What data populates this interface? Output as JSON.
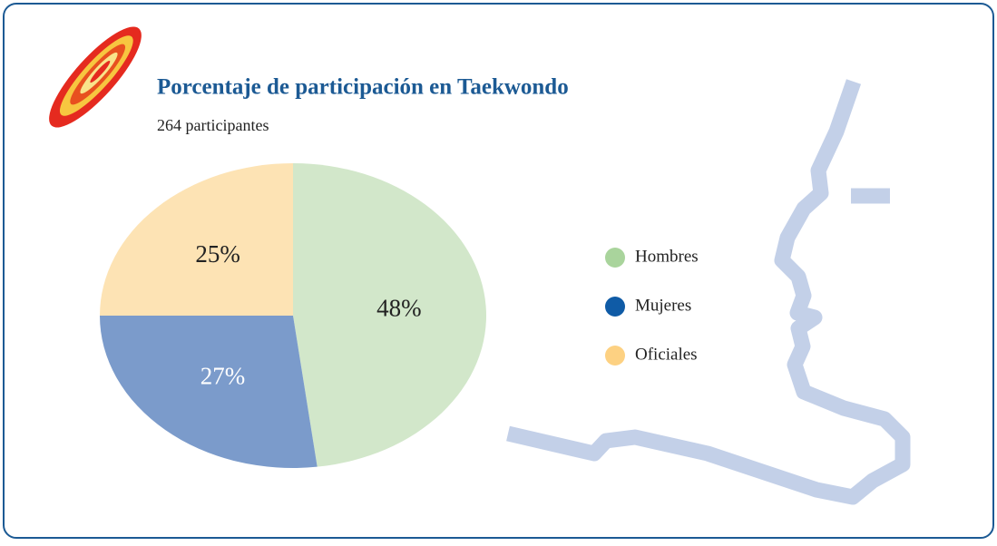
{
  "chart_data": {
    "type": "pie",
    "title": "Porcentaje de participación en Taekwondo",
    "subtitle": "264 participantes",
    "categories": [
      "Hombres",
      "Mujeres",
      "Oficiales"
    ],
    "values": [
      48,
      27,
      25
    ],
    "value_labels": [
      "48%",
      "27%",
      "25%"
    ],
    "colors": [
      "#a9d49c",
      "#0f5ba6",
      "#fdd182"
    ],
    "slice_colors": [
      "#d2e7ca",
      "#7b9bcb",
      "#fde3b4"
    ],
    "legend": "right"
  }
}
